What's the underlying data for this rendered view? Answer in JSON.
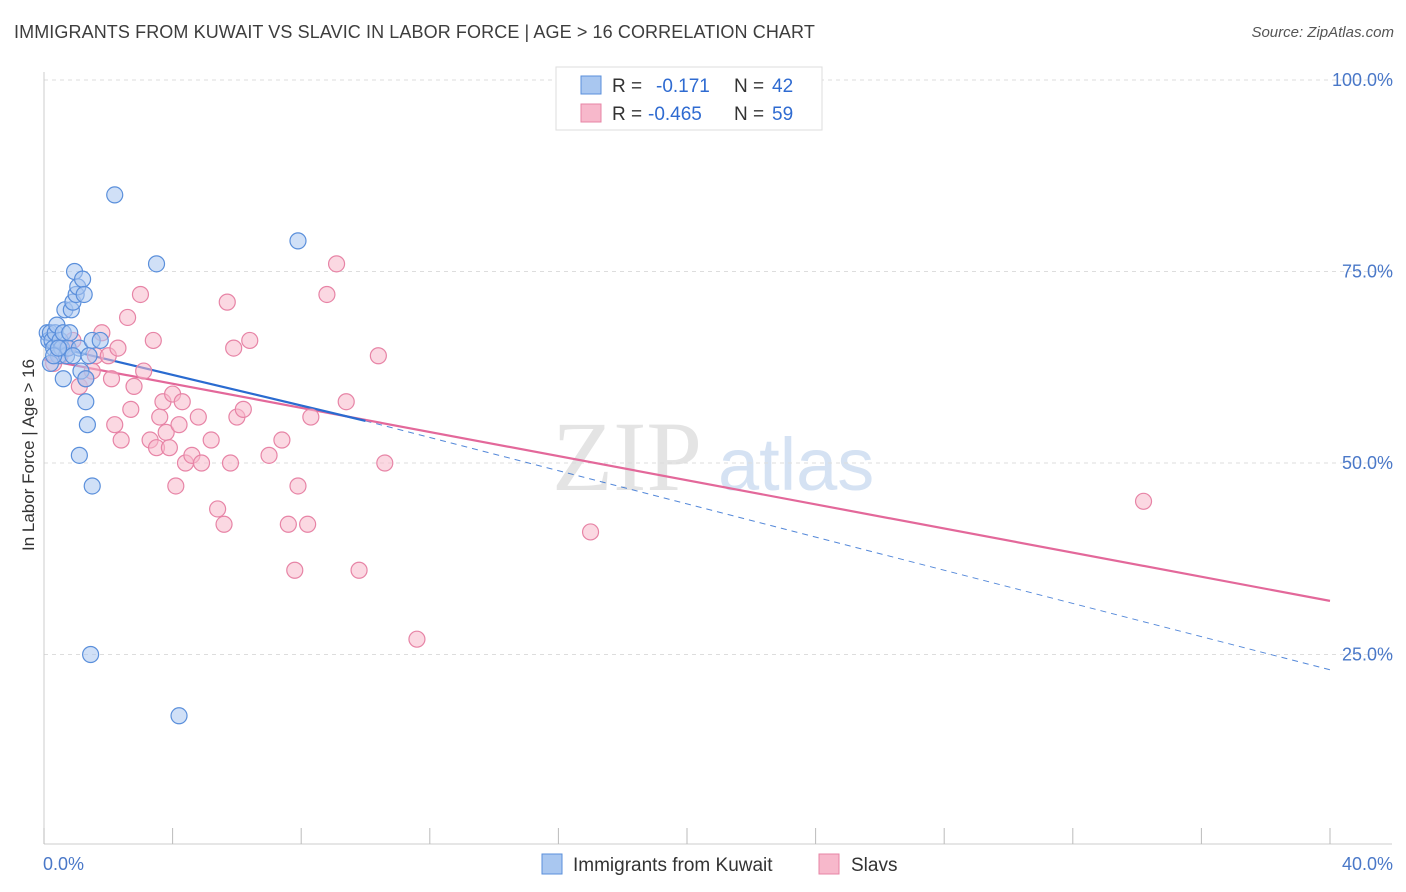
{
  "header": {
    "title": "IMMIGRANTS FROM KUWAIT VS SLAVIC IN LABOR FORCE | AGE > 16 CORRELATION CHART",
    "source": "Source: ZipAtlas.com"
  },
  "watermark": {
    "zip": "ZIP",
    "atlas": "atlas"
  },
  "colors": {
    "series1_fill": "#a9c7f0",
    "series1_stroke": "#5a8fdb",
    "series1_line": "#2a6bd0",
    "series2_fill": "#f7b8cb",
    "series2_stroke": "#e784a6",
    "series2_line": "#e3689a",
    "axis_label": "#4a78c8",
    "grid": "#dddddd"
  },
  "legend": {
    "r_label": "R =",
    "n_label": "N =",
    "rows": [
      {
        "r": "-0.171",
        "n": "42"
      },
      {
        "r": "-0.465",
        "n": "59"
      }
    ]
  },
  "chart_data": {
    "type": "scatter",
    "title": "IMMIGRANTS FROM KUWAIT VS SLAVIC IN LABOR FORCE | AGE > 16 CORRELATION CHART",
    "xlabel": "",
    "ylabel": "In Labor Force | Age > 16",
    "xlim": [
      0,
      40
    ],
    "ylim": [
      5,
      105
    ],
    "x_tick_labels": [
      "0.0%",
      "40.0%"
    ],
    "x_ticks": [
      0,
      40
    ],
    "y_ticks": [
      25,
      50,
      75,
      100
    ],
    "y_tick_labels": [
      "25.0%",
      "50.0%",
      "75.0%",
      "100.0%"
    ],
    "grid": true,
    "legend_position": "bottom-center",
    "series": [
      {
        "name": "Immigrants from Kuwait",
        "r": -0.171,
        "n": 42,
        "x": [
          0.1,
          0.15,
          0.2,
          0.25,
          0.3,
          0.35,
          0.4,
          0.45,
          0.5,
          0.55,
          0.6,
          0.65,
          0.7,
          0.75,
          0.8,
          0.85,
          0.9,
          0.95,
          1.0,
          1.05,
          1.1,
          1.15,
          1.2,
          1.25,
          1.3,
          1.35,
          1.4,
          1.45,
          1.5,
          0.2,
          0.3,
          0.45,
          0.6,
          0.9,
          1.1,
          1.3,
          1.5,
          1.75,
          2.2,
          3.5,
          4.2,
          7.9
        ],
        "y": [
          67,
          66,
          67,
          66,
          65,
          67,
          68,
          64,
          66,
          65,
          67,
          70,
          64,
          65,
          67,
          70,
          71,
          75,
          72,
          73,
          65,
          62,
          74,
          72,
          61,
          55,
          64,
          25,
          66,
          63,
          64,
          65,
          61,
          64,
          51,
          58,
          47,
          66,
          85,
          76,
          17,
          79
        ],
        "trend": {
          "x": [
            0,
            10
          ],
          "y": [
            65.5,
            55.5
          ]
        },
        "trend_extension": {
          "x": [
            10,
            40
          ],
          "y": [
            55.5,
            23.0
          ]
        }
      },
      {
        "name": "Slavs",
        "r": -0.465,
        "n": 59,
        "x": [
          0.3,
          0.5,
          0.7,
          0.9,
          1.1,
          1.3,
          1.5,
          1.6,
          1.8,
          2.0,
          2.1,
          2.2,
          2.3,
          2.4,
          2.6,
          2.7,
          2.8,
          3.0,
          3.1,
          3.3,
          3.4,
          3.5,
          3.6,
          3.7,
          3.8,
          3.9,
          4.0,
          4.1,
          4.2,
          4.3,
          4.4,
          4.6,
          4.8,
          4.9,
          5.2,
          5.4,
          5.6,
          5.7,
          5.8,
          5.9,
          6.0,
          6.2,
          6.4,
          7.0,
          7.4,
          7.6,
          7.8,
          7.9,
          8.2,
          8.3,
          8.8,
          9.1,
          9.4,
          9.8,
          10.4,
          10.6,
          11.6,
          17.0,
          34.2
        ],
        "y": [
          63,
          64,
          65,
          66,
          60,
          61,
          62,
          64,
          67,
          64,
          61,
          55,
          65,
          53,
          69,
          57,
          60,
          72,
          62,
          53,
          66,
          52,
          56,
          58,
          54,
          52,
          59,
          47,
          55,
          58,
          50,
          51,
          56,
          50,
          53,
          44,
          42,
          71,
          50,
          65,
          56,
          57,
          66,
          51,
          53,
          42,
          36,
          47,
          42,
          56,
          72,
          76,
          58,
          36,
          64,
          50,
          27,
          41,
          45
        ],
        "trend": {
          "x": [
            0,
            40
          ],
          "y": [
            63.5,
            32.0
          ]
        }
      }
    ]
  }
}
